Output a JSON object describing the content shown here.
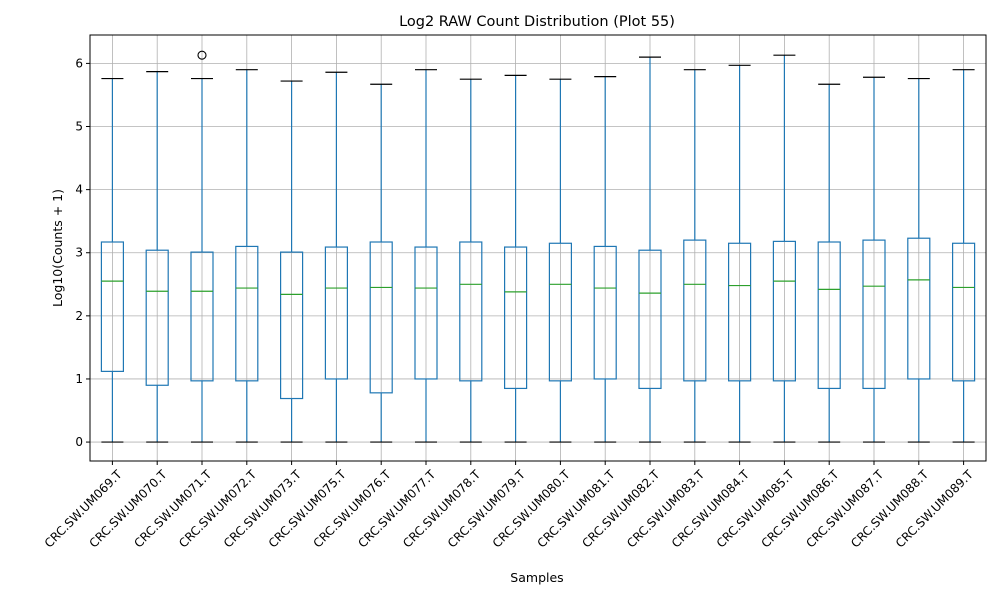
{
  "chart_data": {
    "type": "box",
    "title": "Log2 RAW Count Distribution (Plot 55)",
    "xlabel": "Samples",
    "ylabel": "Log10(Counts + 1)",
    "ylim": [
      -0.3,
      6.45
    ],
    "yticks": [
      0,
      1,
      2,
      3,
      4,
      5,
      6
    ],
    "grid": true,
    "colors": {
      "box": "#1f77b4",
      "median": "#2ca02c",
      "cap": "#000000",
      "grid": "#b0b0b0"
    },
    "categories": [
      "CRC.SW.UM069.T",
      "CRC.SW.UM070.T",
      "CRC.SW.UM071.T",
      "CRC.SW.UM072.T",
      "CRC.SW.UM073.T",
      "CRC.SW.UM075.T",
      "CRC.SW.UM076.T",
      "CRC.SW.UM077.T",
      "CRC.SW.UM078.T",
      "CRC.SW.UM079.T",
      "CRC.SW.UM080.T",
      "CRC.SW.UM081.T",
      "CRC.SW.UM082.T",
      "CRC.SW.UM083.T",
      "CRC.SW.UM084.T",
      "CRC.SW.UM085.T",
      "CRC.SW.UM086.T",
      "CRC.SW.UM087.T",
      "CRC.SW.UM088.T",
      "CRC.SW.UM089.T"
    ],
    "boxes": [
      {
        "min": 0,
        "q1": 1.12,
        "median": 2.55,
        "q3": 3.17,
        "max": 5.76,
        "outliers": []
      },
      {
        "min": 0,
        "q1": 0.9,
        "median": 2.39,
        "q3": 3.04,
        "max": 5.87,
        "outliers": []
      },
      {
        "min": 0,
        "q1": 0.97,
        "median": 2.39,
        "q3": 3.01,
        "max": 5.76,
        "outliers": [
          6.13
        ]
      },
      {
        "min": 0,
        "q1": 0.97,
        "median": 2.44,
        "q3": 3.1,
        "max": 5.9,
        "outliers": []
      },
      {
        "min": 0,
        "q1": 0.69,
        "median": 2.34,
        "q3": 3.01,
        "max": 5.72,
        "outliers": []
      },
      {
        "min": 0,
        "q1": 1.0,
        "median": 2.44,
        "q3": 3.09,
        "max": 5.86,
        "outliers": []
      },
      {
        "min": 0,
        "q1": 0.78,
        "median": 2.45,
        "q3": 3.17,
        "max": 5.67,
        "outliers": []
      },
      {
        "min": 0,
        "q1": 1.0,
        "median": 2.44,
        "q3": 3.09,
        "max": 5.9,
        "outliers": []
      },
      {
        "min": 0,
        "q1": 0.97,
        "median": 2.5,
        "q3": 3.17,
        "max": 5.75,
        "outliers": []
      },
      {
        "min": 0,
        "q1": 0.85,
        "median": 2.38,
        "q3": 3.09,
        "max": 5.81,
        "outliers": []
      },
      {
        "min": 0,
        "q1": 0.97,
        "median": 2.5,
        "q3": 3.15,
        "max": 5.75,
        "outliers": []
      },
      {
        "min": 0,
        "q1": 1.0,
        "median": 2.44,
        "q3": 3.1,
        "max": 5.79,
        "outliers": []
      },
      {
        "min": 0,
        "q1": 0.85,
        "median": 2.36,
        "q3": 3.04,
        "max": 6.1,
        "outliers": []
      },
      {
        "min": 0,
        "q1": 0.97,
        "median": 2.5,
        "q3": 3.2,
        "max": 5.9,
        "outliers": []
      },
      {
        "min": 0,
        "q1": 0.97,
        "median": 2.48,
        "q3": 3.15,
        "max": 5.97,
        "outliers": []
      },
      {
        "min": 0,
        "q1": 0.97,
        "median": 2.55,
        "q3": 3.18,
        "max": 6.13,
        "outliers": []
      },
      {
        "min": 0,
        "q1": 0.85,
        "median": 2.42,
        "q3": 3.17,
        "max": 5.67,
        "outliers": []
      },
      {
        "min": 0,
        "q1": 0.85,
        "median": 2.47,
        "q3": 3.2,
        "max": 5.78,
        "outliers": []
      },
      {
        "min": 0,
        "q1": 1.0,
        "median": 2.57,
        "q3": 3.23,
        "max": 5.76,
        "outliers": []
      },
      {
        "min": 0,
        "q1": 0.97,
        "median": 2.45,
        "q3": 3.15,
        "max": 5.9,
        "outliers": []
      }
    ]
  }
}
